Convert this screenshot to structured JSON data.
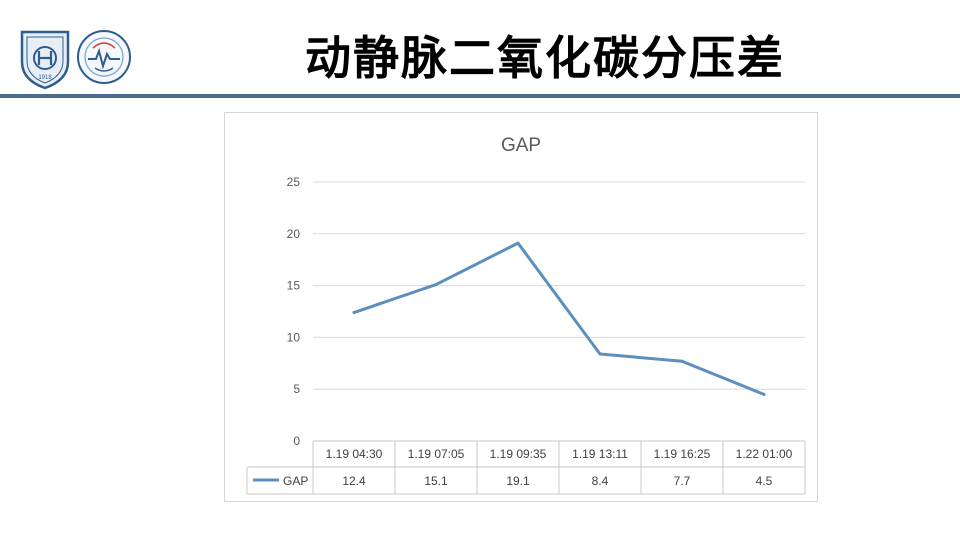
{
  "slide": {
    "title": "动静脉二氧化碳分压差"
  },
  "icons": [
    "hospital-crest-icon",
    "icu-emblem-icon"
  ],
  "logo_text": {
    "crest_year": "1918"
  },
  "colors": {
    "series": "#5b8fc0",
    "rule": "#4a6a93",
    "grid": "#d9d9d9"
  },
  "chart_data": {
    "type": "line",
    "title": "GAP",
    "categories": [
      "1.19 04:30",
      "1.19 07:05",
      "1.19 09:35",
      "1.19 13:11",
      "1.19 16:25",
      "1.22 01:00"
    ],
    "series": [
      {
        "name": "GAP",
        "values": [
          12.4,
          15.1,
          19.1,
          8.4,
          7.7,
          4.5
        ]
      }
    ],
    "value_labels": [
      "12.4",
      "15.1",
      "19.1",
      "8.4",
      "7.7",
      "4.5"
    ],
    "yticks": [
      "0",
      "5",
      "10",
      "15",
      "20",
      "25"
    ],
    "ylim": [
      0,
      25
    ],
    "grid": true,
    "legend": "data-table",
    "xlabel": "",
    "ylabel": ""
  }
}
